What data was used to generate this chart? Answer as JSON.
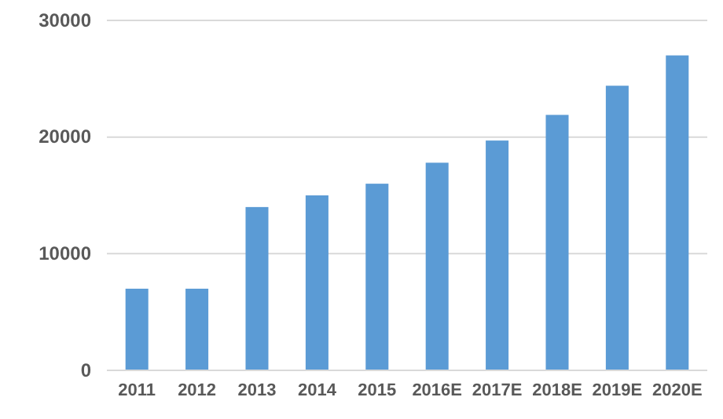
{
  "chart_data": {
    "type": "bar",
    "categories": [
      "2011",
      "2012",
      "2013",
      "2014",
      "2015",
      "2016E",
      "2017E",
      "2018E",
      "2019E",
      "2020E"
    ],
    "values": [
      7000,
      7000,
      14000,
      15000,
      16000,
      17800,
      19700,
      21900,
      24400,
      27000
    ],
    "color": "#5b9bd5",
    "ylim": [
      0,
      30000
    ],
    "yticks": [
      0,
      10000,
      20000,
      30000
    ],
    "grid": "y"
  }
}
